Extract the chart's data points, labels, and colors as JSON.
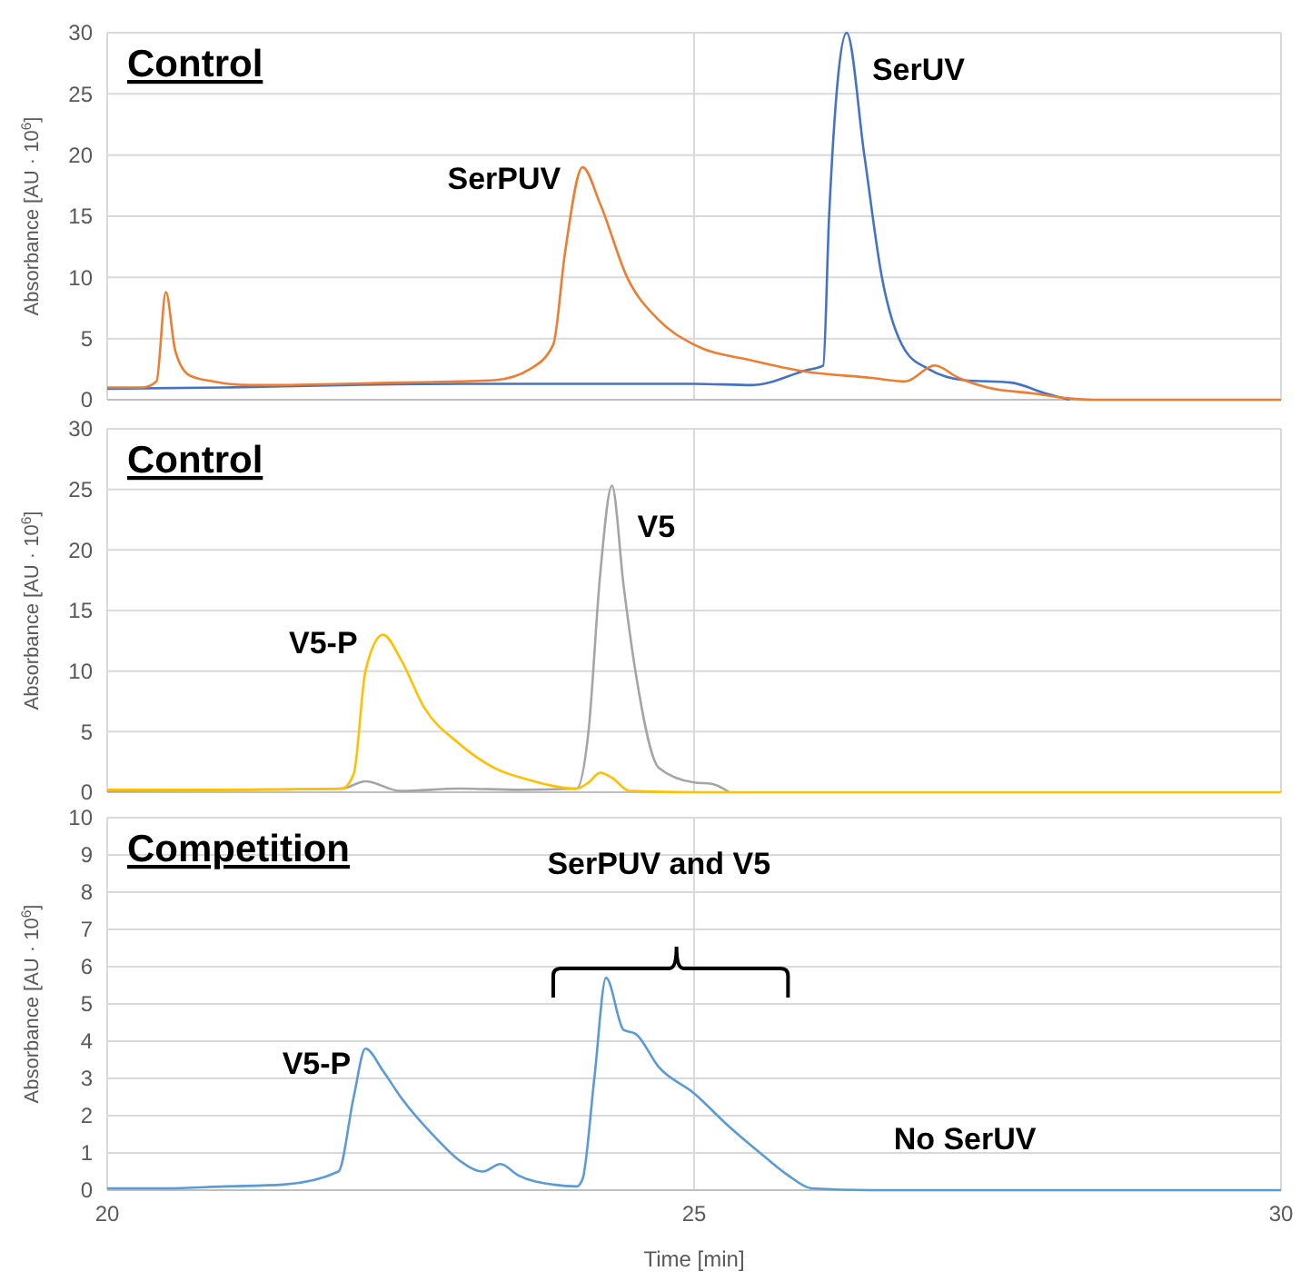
{
  "chart_data": [
    {
      "type": "line",
      "title": "Control",
      "ylabel": "Absorbance [AU · 10$^{6}$]",
      "xlim": [
        20,
        30
      ],
      "xticks": [
        20,
        25,
        30
      ],
      "ylim": [
        0,
        30
      ],
      "yticks": [
        0,
        5,
        10,
        15,
        20,
        25,
        30
      ],
      "grid": true,
      "tick_labels": "y",
      "marker": "none",
      "line_style": "solid",
      "annotations": [
        {
          "text": "SerPUV",
          "x": 24.05,
          "y": 19
        },
        {
          "text": "SerUV",
          "x": 26.3,
          "y": 30
        }
      ],
      "series": [
        {
          "color": "#4472c4",
          "x": [
            20,
            21,
            22,
            23,
            24,
            25,
            25.5,
            25.95,
            26.1,
            26.15,
            26.3,
            26.45,
            26.6,
            26.8,
            27,
            27.3,
            27.7,
            28,
            28.2
          ],
          "values": [
            0.9,
            1,
            1.2,
            1.3,
            1.3,
            1.3,
            1.2,
            2.4,
            2.8,
            15,
            30,
            20,
            10,
            4,
            2.5,
            1.6,
            1.4,
            0.5,
            0
          ]
        },
        {
          "color": "#ed7d31",
          "x": [
            20,
            20.3,
            20.42,
            20.5,
            20.58,
            20.7,
            20.9,
            21.2,
            21.5,
            22,
            22.5,
            23,
            23.3,
            23.6,
            23.8,
            23.9,
            24.05,
            24.2,
            24.43,
            24.7,
            25,
            25.5,
            25.95,
            26.5,
            26.8,
            27.05,
            27.25,
            27.5,
            27.9,
            28.2,
            28.4,
            29,
            30
          ],
          "values": [
            1,
            1,
            1.5,
            8.8,
            4,
            2,
            1.5,
            1.2,
            1.2,
            1.3,
            1.4,
            1.5,
            1.6,
            2.5,
            4.5,
            12,
            19,
            16,
            10,
            6.5,
            4.5,
            3.2,
            2.3,
            1.8,
            1.5,
            2.8,
            1.8,
            1,
            0.5,
            0.1,
            0,
            0,
            0
          ]
        }
      ]
    },
    {
      "type": "line",
      "title": "Control",
      "ylabel": "Absorbance [AU · 10$^{6}$]",
      "xlim": [
        20,
        30
      ],
      "xticks": [
        20,
        25,
        30
      ],
      "ylim": [
        0,
        30
      ],
      "yticks": [
        0,
        5,
        10,
        15,
        20,
        25,
        30
      ],
      "grid": true,
      "tick_labels": "y",
      "marker": "none",
      "line_style": "solid",
      "annotations": [
        {
          "text": "V5",
          "x": 24.3,
          "y": 25.3
        },
        {
          "text": "V5-P",
          "x": 22.35,
          "y": 13
        }
      ],
      "series": [
        {
          "color": "#a5a5a5",
          "x": [
            20,
            21,
            22,
            22.2,
            22.5,
            23,
            23.5,
            24,
            24.1,
            24.2,
            24.3,
            24.4,
            24.5,
            24.7,
            25,
            25.15,
            25.3
          ],
          "values": [
            0.1,
            0.2,
            0.3,
            0.9,
            0.1,
            0.3,
            0.2,
            0.3,
            5,
            18,
            25.3,
            17,
            10,
            2,
            0.8,
            0.7,
            0
          ]
        },
        {
          "color": "#ffc000",
          "x": [
            20,
            21,
            22,
            22.1,
            22.2,
            22.35,
            22.5,
            22.7,
            23,
            23.3,
            23.6,
            24,
            24.1,
            24.2,
            24.3,
            24.45,
            25,
            30
          ],
          "values": [
            0.2,
            0.2,
            0.3,
            1.5,
            10,
            13,
            11,
            7,
            4,
            2,
            1,
            0.3,
            0.8,
            1.6,
            1.2,
            0.1,
            0,
            0
          ]
        }
      ]
    },
    {
      "type": "line",
      "title": "Competition",
      "xlabel": "Time [min]",
      "ylabel": "Absorbance [AU · 10$^{6}$]",
      "xlim": [
        20,
        30
      ],
      "xticks": [
        20,
        25,
        30
      ],
      "ylim": [
        0,
        10
      ],
      "yticks": [
        0,
        1,
        2,
        3,
        4,
        5,
        6,
        7,
        8,
        9,
        10
      ],
      "grid": true,
      "marker": "none",
      "line_style": "solid",
      "annotations": [
        {
          "text": "V5-P",
          "x": 22.2,
          "y": 3.8
        },
        "SerPUV and V5",
        "No SerUV"
      ],
      "series": [
        {
          "color": "#5b9bd5",
          "x": [
            20,
            20.5,
            21,
            21.5,
            21.97,
            22.1,
            22.2,
            22.35,
            22.5,
            22.8,
            23,
            23.2,
            23.35,
            23.5,
            23.8,
            24,
            24.05,
            24.15,
            24.25,
            24.4,
            24.5,
            24.7,
            25,
            25.3,
            25.6,
            25.8,
            26,
            26.5,
            30
          ],
          "values": [
            0.05,
            0.05,
            0.1,
            0.15,
            0.5,
            2.5,
            3.8,
            3.2,
            2.5,
            1.4,
            0.8,
            0.5,
            0.7,
            0.4,
            0.15,
            0.1,
            0.3,
            3,
            5.7,
            4.3,
            4.2,
            3.3,
            2.6,
            1.7,
            0.9,
            0.4,
            0.05,
            0,
            0
          ]
        }
      ]
    }
  ]
}
